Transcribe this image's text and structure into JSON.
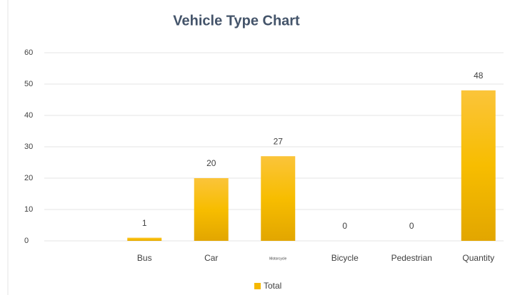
{
  "chart_data": {
    "type": "bar",
    "title": "Vehicle Type Chart",
    "categories": [
      null,
      "Bus",
      "Car",
      "Motorcycle",
      "Bicycle",
      "Pedestrian",
      "Quantity"
    ],
    "series": [
      {
        "name": "Total",
        "color": "#f5b800",
        "values": [
          null,
          1,
          20,
          27,
          0,
          0,
          48
        ]
      }
    ],
    "ylim": [
      0,
      60
    ],
    "yticks": [
      0,
      10,
      20,
      30,
      40,
      50,
      60
    ],
    "grid": true,
    "legend": "bottom"
  }
}
